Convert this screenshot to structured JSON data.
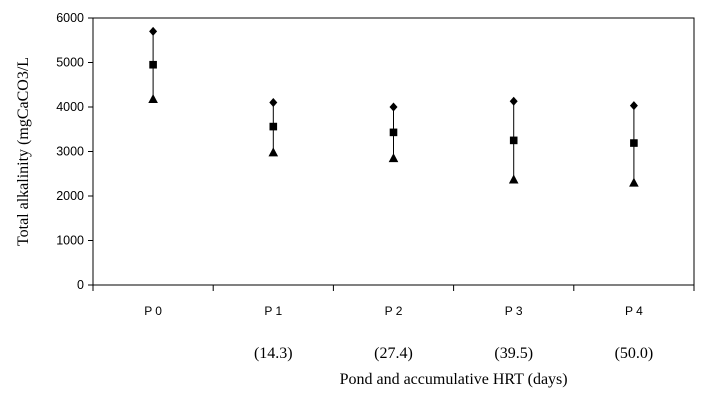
{
  "chart_data": {
    "type": "scatter",
    "title": "",
    "xlabel": "Pond and accumulative HRT (days)",
    "ylabel": "Total alkalinity (mgCaCO3/L",
    "ylim": [
      0,
      6000
    ],
    "yticks": [
      0,
      1000,
      2000,
      3000,
      4000,
      5000,
      6000
    ],
    "categories": [
      "P0",
      "P1",
      "P2",
      "P3",
      "P4"
    ],
    "category_tick_labels": [
      "P 0",
      "P 1",
      "P 2",
      "P 3",
      "P 4"
    ],
    "hrt_labels": [
      "",
      "(14.3)",
      "(27.4)",
      "(39.5)",
      "(50.0)"
    ],
    "grid": false,
    "legend": "none",
    "series": [
      {
        "marker": "diamond",
        "values": [
          5700,
          4100,
          4000,
          4130,
          4030
        ]
      },
      {
        "marker": "square",
        "values": [
          4950,
          3560,
          3430,
          3250,
          3190
        ]
      },
      {
        "marker": "triangle",
        "values": [
          4180,
          2980,
          2850,
          2370,
          2300
        ]
      }
    ],
    "colors": {
      "marker": "#000000",
      "axis": "#000000",
      "plot_border": "#000000",
      "background": "#ffffff"
    }
  }
}
